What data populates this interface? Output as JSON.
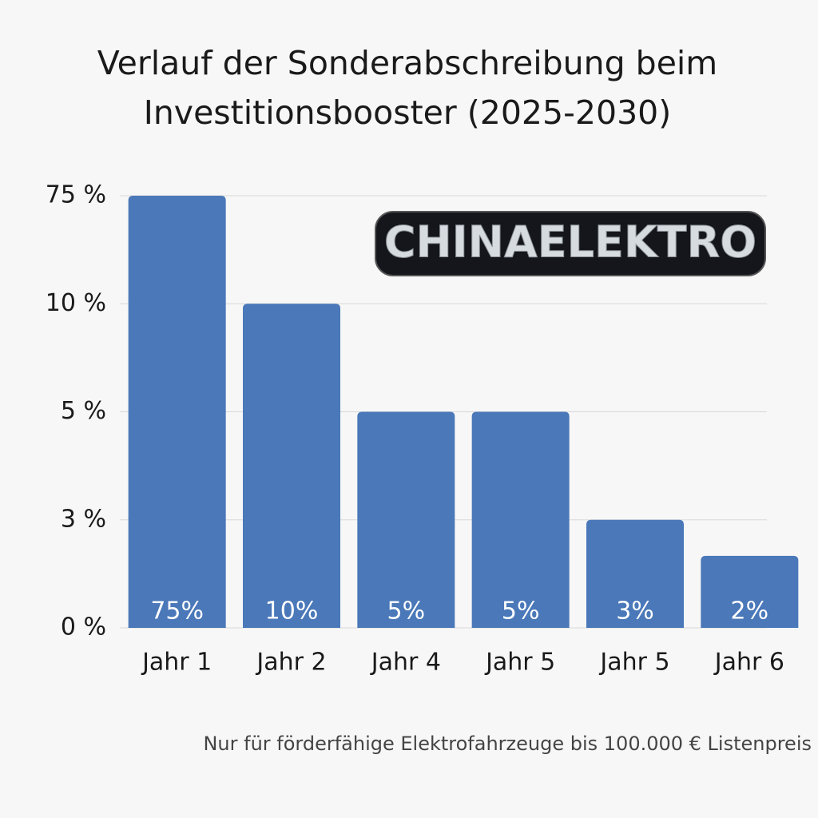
{
  "chart_data": {
    "type": "bar",
    "title": "Verlauf der Sonderabschreibung beim Investitionsbooster (2025-2030)",
    "categories": [
      "Jahr 1",
      "Jahr 2",
      "Jahr 4",
      "Jahr 5",
      "Jahr 5",
      "Jahr 6"
    ],
    "values": [
      75,
      10,
      5,
      5,
      3,
      2
    ],
    "value_labels": [
      "75%",
      "10%",
      "5%",
      "5%",
      "3%",
      "2%"
    ],
    "color": "#4a78b9",
    "ylim": [
      0,
      75
    ],
    "yticks": [
      {
        "value": 0,
        "label": "0 %"
      },
      {
        "value": 3,
        "label": "3 %"
      },
      {
        "value": 5,
        "label": "5 %"
      },
      {
        "value": 10,
        "label": "10 %"
      },
      {
        "value": 75,
        "label": "75 %"
      }
    ],
    "yscale": "tick-spaced",
    "grid": true,
    "logo": "CHINAELEKTRO",
    "note": "Nur für förderfähige Elektrofahrzeuge bis 100.000 € Listenpreis"
  }
}
